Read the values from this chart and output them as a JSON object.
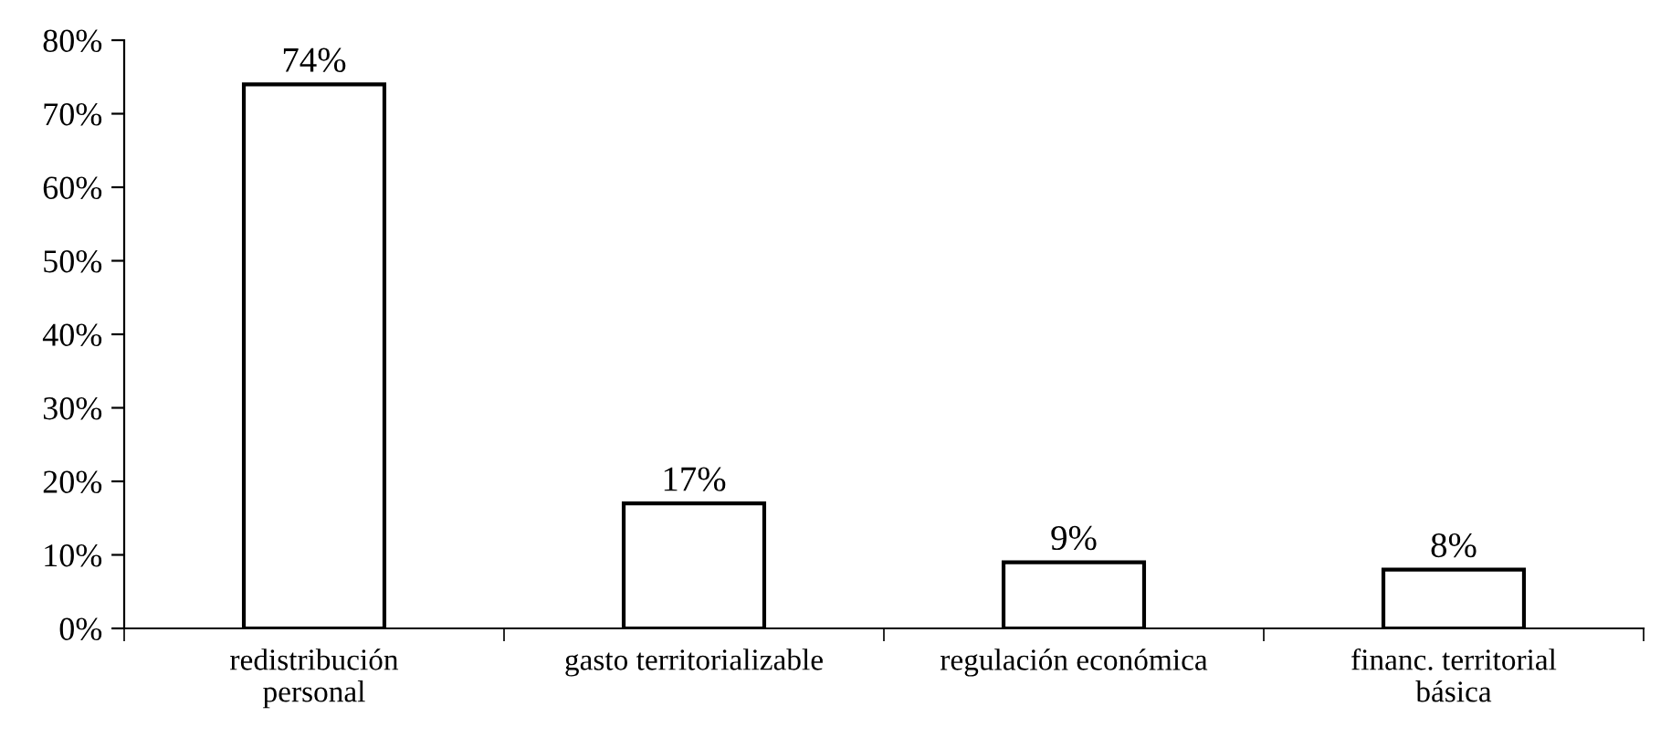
{
  "chart_data": {
    "type": "bar",
    "categories": [
      "redistribución\npersonal",
      "gasto territorializable",
      "regulación económica",
      "financ. territorial\nbásica"
    ],
    "values": [
      74,
      17,
      9,
      8
    ],
    "value_labels": [
      "74%",
      "17%",
      "9%",
      "8%"
    ],
    "color": "#ffffff",
    "ylim": [
      0,
      80
    ],
    "yticks": [
      {
        "value": 0,
        "label": "0%"
      },
      {
        "value": 10,
        "label": "10%"
      },
      {
        "value": 20,
        "label": "20%"
      },
      {
        "value": 30,
        "label": "30%"
      },
      {
        "value": 40,
        "label": "40%"
      },
      {
        "value": 50,
        "label": "50%"
      },
      {
        "value": 60,
        "label": "60%"
      },
      {
        "value": 70,
        "label": "70%"
      },
      {
        "value": 80,
        "label": "80%"
      }
    ],
    "grid": false,
    "legend": false
  }
}
